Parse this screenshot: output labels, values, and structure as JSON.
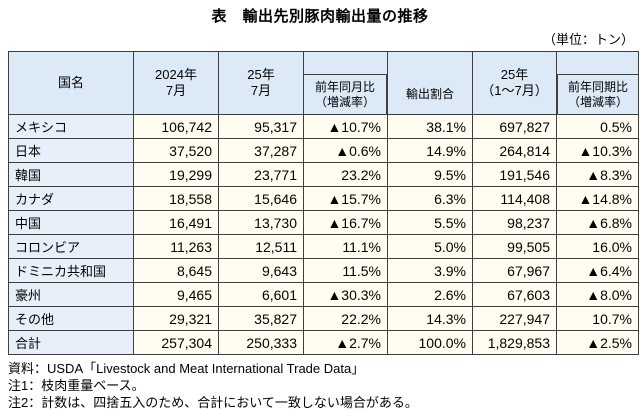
{
  "page": {
    "title": "表　輸出先別豚肉輸出量の推移",
    "unit_note": "（単位：トン）"
  },
  "table": {
    "headers": {
      "country": "国名",
      "month_2024": "2024年\n7月",
      "month_2025": "25年\n7月",
      "yoy_month": "前年同月比\n（増減率）",
      "share": "輸出割合",
      "cumulative_2025": "25年\n（1～7月）",
      "yoy_cumulative": "前年同期比\n（増減率）"
    },
    "rows": [
      {
        "country": "メキシコ",
        "month_2024": "106,742",
        "month_2025": "95,317",
        "yoy_month": "▲10.7%",
        "share": "38.1%",
        "cumulative_2025": "697,827",
        "yoy_cumulative": "0.5%"
      },
      {
        "country": "日本",
        "month_2024": "37,520",
        "month_2025": "37,287",
        "yoy_month": "▲0.6%",
        "share": "14.9%",
        "cumulative_2025": "264,814",
        "yoy_cumulative": "▲10.3%"
      },
      {
        "country": "韓国",
        "month_2024": "19,299",
        "month_2025": "23,771",
        "yoy_month": "23.2%",
        "share": "9.5%",
        "cumulative_2025": "191,546",
        "yoy_cumulative": "▲8.3%"
      },
      {
        "country": "カナダ",
        "month_2024": "18,558",
        "month_2025": "15,646",
        "yoy_month": "▲15.7%",
        "share": "6.3%",
        "cumulative_2025": "114,408",
        "yoy_cumulative": "▲14.8%"
      },
      {
        "country": "中国",
        "month_2024": "16,491",
        "month_2025": "13,730",
        "yoy_month": "▲16.7%",
        "share": "5.5%",
        "cumulative_2025": "98,237",
        "yoy_cumulative": "▲6.8%"
      },
      {
        "country": "コロンビア",
        "month_2024": "11,263",
        "month_2025": "12,511",
        "yoy_month": "11.1%",
        "share": "5.0%",
        "cumulative_2025": "99,505",
        "yoy_cumulative": "16.0%"
      },
      {
        "country": "ドミニカ共和国",
        "month_2024": "8,645",
        "month_2025": "9,643",
        "yoy_month": "11.5%",
        "share": "3.9%",
        "cumulative_2025": "67,967",
        "yoy_cumulative": "▲6.4%"
      },
      {
        "country": "豪州",
        "month_2024": "9,465",
        "month_2025": "6,601",
        "yoy_month": "▲30.3%",
        "share": "2.6%",
        "cumulative_2025": "67,603",
        "yoy_cumulative": "▲8.0%"
      },
      {
        "country": "その他",
        "month_2024": "29,321",
        "month_2025": "35,827",
        "yoy_month": "22.2%",
        "share": "14.3%",
        "cumulative_2025": "227,947",
        "yoy_cumulative": "10.7%"
      },
      {
        "country": "合計",
        "month_2024": "257,304",
        "month_2025": "250,333",
        "yoy_month": "▲2.7%",
        "share": "100.0%",
        "cumulative_2025": "1,829,853",
        "yoy_cumulative": "▲2.5%"
      }
    ]
  },
  "footnotes": [
    "資料：USDA「Livestock and Meat International Trade Data」",
    "注1：枝肉重量ベース。",
    "注2：計数は、四捨五入のため、合計において一致しない場合がある。"
  ],
  "colors": {
    "header_bg": "#dce9f6",
    "country_col_bg": "#e7f0fa",
    "data_cell_bg": "#fffdf0",
    "border": "#3f3f3f",
    "text": "#000000"
  }
}
